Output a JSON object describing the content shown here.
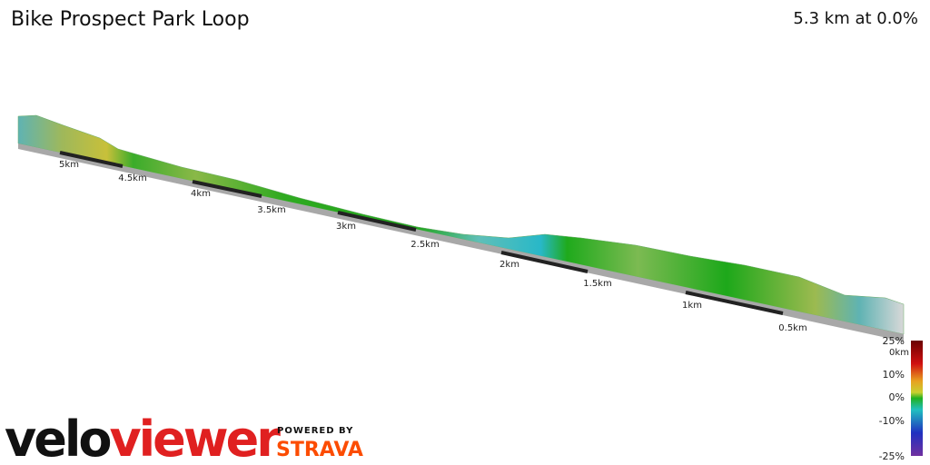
{
  "header": {
    "title": "Bike Prospect Park Loop",
    "summary": "5.3 km at 0.0%"
  },
  "distance_markers": [
    "5km",
    "4.5km",
    "4km",
    "3.5km",
    "3km",
    "2.5km",
    "2km",
    "1.5km",
    "1km",
    "0.5km",
    "0km"
  ],
  "gradient_legend": {
    "ticks": [
      "25%",
      "10%",
      "0%",
      "-10%",
      "-25%"
    ]
  },
  "branding": {
    "logo_primary": "velo",
    "logo_secondary": "viewer",
    "powered_by": "POWERED BY",
    "partner": "STRAVA"
  }
}
